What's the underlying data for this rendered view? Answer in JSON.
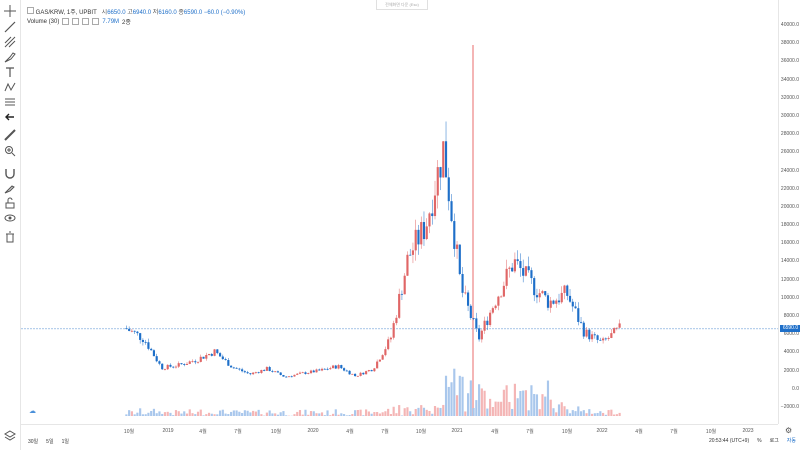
{
  "legend": {
    "symbol": "GAS/KRW, 1주, UPBIT",
    "o_label": "시",
    "o_val": "6650.0",
    "h_label": "고",
    "h_val": "6940.0",
    "l_label": "저",
    "l_val": "6160.0",
    "c_label": "종",
    "c_val": "6590.0",
    "change": "−60.0 (−0.90%)"
  },
  "volume_legend": {
    "name": "Volume (30)",
    "value": "7.79M",
    "extra": "2종"
  },
  "toast": "전체화면 다운 (Esc)",
  "price_axis": [
    "40000.0",
    "38000.0",
    "36000.0",
    "34000.0",
    "32000.0",
    "30000.0",
    "28000.0",
    "26000.0",
    "24000.0",
    "22000.0",
    "20000.0",
    "18000.0",
    "16000.0",
    "14000.0",
    "12000.0",
    "10000.0",
    "8000.0",
    "6000.0",
    "4000.0",
    "2000.0",
    "0.0",
    "−2000.0"
  ],
  "current_price": "6590.0",
  "time_axis": [
    "10월",
    "2019",
    "4월",
    "7월",
    "10월",
    "2020",
    "4월",
    "7월",
    "10월",
    "2021",
    "4월",
    "7월",
    "10월",
    "2022",
    "4월",
    "7월",
    "10월",
    "2023"
  ],
  "bottom_left": [
    "30일",
    "5일",
    "1일"
  ],
  "bottom_right": {
    "clock": "20:53:44 (UTC+9)",
    "percent": "%",
    "log": "로그",
    "auto": "자동"
  },
  "icons": [
    "crosshair-icon",
    "trendline-icon",
    "pitchfork-icon",
    "brush-icon",
    "text-icon",
    "pattern-icon",
    "measure-icon",
    "arrow-left-icon",
    "ruler-icon",
    "zoom-in-icon",
    "magnet-icon",
    "lock-draw-icon",
    "unlock-icon",
    "eye-icon",
    "trash-icon",
    "layers-icon"
  ],
  "colors": {
    "up": "#e06666",
    "down": "#1e6fc9",
    "vol_up": "#f4b5b5",
    "vol_down": "#a9c7ec"
  },
  "chart_data": {
    "type": "candlestick",
    "x": [
      "2018-10",
      "2018-12",
      "2019-01",
      "2019-03",
      "2019-05",
      "2019-07",
      "2019-09",
      "2019-11",
      "2020-01",
      "2020-03",
      "2020-05",
      "2020-07",
      "2020-09",
      "2020-11",
      "2021-01",
      "2021-02",
      "2021-03",
      "2021-04",
      "2021-05",
      "2021-06",
      "2021-07",
      "2021-08",
      "2021-09",
      "2021-10",
      "2021-11",
      "2021-12",
      "2022-01",
      "2022-02",
      "2022-03"
    ],
    "close": [
      6600,
      5500,
      2300,
      2600,
      3200,
      4100,
      2400,
      1600,
      2200,
      1300,
      1700,
      2000,
      2500,
      1400,
      2200,
      5500,
      14500,
      18000,
      26500,
      11000,
      5500,
      10000,
      14000,
      11500,
      9500,
      10500,
      6200,
      5000,
      6590
    ],
    "volume_note": "",
    "ylim": [
      -3000,
      41000
    ]
  }
}
